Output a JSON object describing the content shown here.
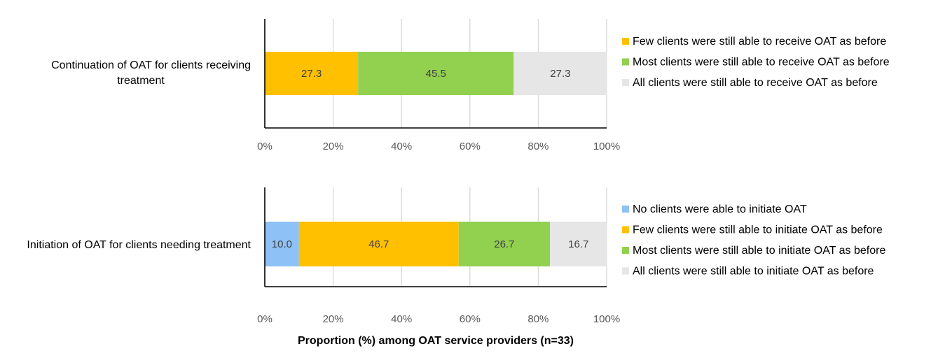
{
  "chart_data": [
    {
      "type": "bar",
      "orientation": "horizontal",
      "stacked": true,
      "categories": [
        "Continuation of OAT for clients receiving treatment"
      ],
      "category_lines": [
        [
          "Continuation of OAT for clients receiving",
          "treatment"
        ]
      ],
      "series": [
        {
          "name": "Few clients were still able to receive OAT as before",
          "values": [
            27.3
          ],
          "color": "#ffc000"
        },
        {
          "name": "Most clients were still able to receive OAT as before",
          "values": [
            45.5
          ],
          "color": "#92d050"
        },
        {
          "name": "All clients were still able to receive OAT as before",
          "values": [
            27.3
          ],
          "color": "#e7e6e6"
        }
      ],
      "xlim": [
        0,
        100
      ],
      "xticks": [
        "0%",
        "20%",
        "40%",
        "60%",
        "80%",
        "100%"
      ],
      "grid": true,
      "legend_position": "right"
    },
    {
      "type": "bar",
      "orientation": "horizontal",
      "stacked": true,
      "categories": [
        "Initiation of OAT for clients needing treatment"
      ],
      "category_lines": [
        [
          "Initiation of OAT for clients needing treatment"
        ]
      ],
      "series": [
        {
          "name": "No clients were able to initiate OAT",
          "values": [
            10.0
          ],
          "color": "#8ec1f5"
        },
        {
          "name": "Few clients were still able to initiate OAT as before",
          "values": [
            46.7
          ],
          "color": "#ffc000"
        },
        {
          "name": "Most clients were still able to initiate OAT as before",
          "values": [
            26.7
          ],
          "color": "#92d050"
        },
        {
          "name": "All clients were still able to initiate OAT as before",
          "values": [
            16.7
          ],
          "color": "#e7e6e6"
        }
      ],
      "xlim": [
        0,
        100
      ],
      "xticks": [
        "0%",
        "20%",
        "40%",
        "60%",
        "80%",
        "100%"
      ],
      "grid": true,
      "legend_position": "right",
      "xlabel": "Proportion  (%) among OAT service providers (n=33)"
    }
  ]
}
